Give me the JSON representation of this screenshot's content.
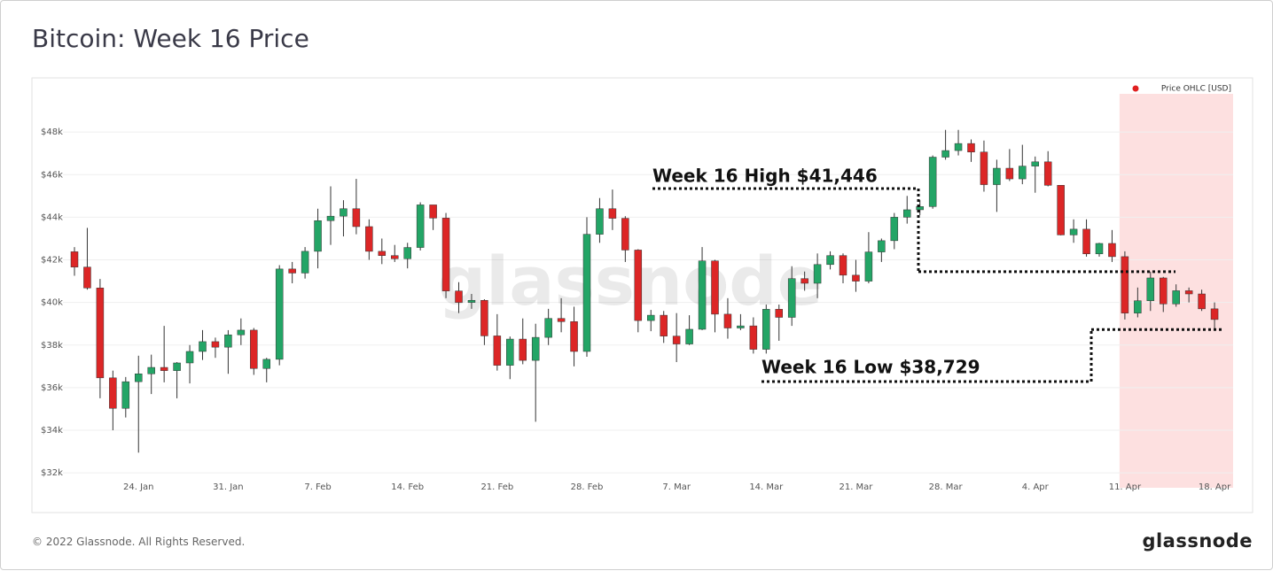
{
  "chart_data": {
    "type": "candlestick",
    "title": "Bitcoin: Week 16 Price",
    "watermark": "glassnode",
    "legend": {
      "name": "Price OHLC [USD]",
      "color": "#e02020",
      "position": "top-right"
    },
    "up_color": "#23a566",
    "down_color": "#dc2626",
    "highlight_color": "#fde0e0",
    "highlight_start": "11. Apr",
    "categories": [
      null,
      null,
      null,
      null,
      null,
      "24. Jan",
      null,
      null,
      null,
      null,
      null,
      null,
      "31. Jan",
      null,
      null,
      null,
      null,
      null,
      null,
      "7. Feb",
      null,
      null,
      null,
      null,
      null,
      null,
      "14. Feb",
      null,
      null,
      null,
      null,
      null,
      null,
      "21. Feb",
      null,
      null,
      null,
      null,
      null,
      null,
      "28. Feb",
      null,
      null,
      null,
      null,
      null,
      null,
      "7. Mar",
      null,
      null,
      null,
      null,
      null,
      null,
      "14. Mar",
      null,
      null,
      null,
      null,
      null,
      null,
      "21. Mar",
      null,
      null,
      null,
      null,
      null,
      null,
      "28. Mar",
      null,
      null,
      null,
      null,
      null,
      null,
      "4. Apr",
      null,
      null,
      null,
      null,
      null,
      null,
      "11. Apr",
      null,
      null,
      null,
      null,
      null,
      null,
      "18. Apr"
    ],
    "open": [
      42380,
      41660,
      40680,
      36460,
      35030,
      36280,
      36650,
      36950,
      36800,
      37160,
      37700,
      38160,
      37900,
      38480,
      38700,
      36900,
      37330,
      41570,
      41380,
      42400,
      43840,
      44050,
      44400,
      43560,
      42400,
      42200,
      42050,
      42580,
      44580,
      43960,
      40540,
      40000,
      40100,
      38430,
      37050,
      38280,
      37280,
      38360,
      39250,
      39100,
      37700,
      43200,
      44400,
      43950,
      42460,
      39150,
      39400,
      38420,
      38050,
      38740,
      41950,
      39450,
      38800,
      38900,
      37800,
      39680,
      39300,
      41120,
      40900,
      41780,
      42200,
      41280,
      41000,
      42370,
      42900,
      44000,
      44350,
      44500,
      46820,
      47130,
      47460,
      47060,
      45530,
      46300,
      45800,
      46400,
      46600,
      45500,
      43170,
      43440,
      42280,
      42770,
      42150,
      39500,
      40080,
      41150,
      39930,
      40550,
      40400,
      39700
    ],
    "high": [
      42600,
      43500,
      41100,
      36800,
      36500,
      37500,
      37550,
      38900,
      37200,
      38000,
      38700,
      38350,
      38700,
      39250,
      38800,
      37400,
      41750,
      41900,
      42600,
      44400,
      45450,
      44800,
      45800,
      43900,
      43000,
      42700,
      42800,
      44700,
      44580,
      44200,
      40950,
      40400,
      40150,
      39450,
      38400,
      39250,
      39000,
      39700,
      40200,
      39800,
      44000,
      44900,
      45300,
      44050,
      42500,
      39650,
      39600,
      39500,
      39400,
      42600,
      42000,
      40200,
      39450,
      39300,
      39900,
      39900,
      41700,
      41450,
      42300,
      42400,
      42300,
      42000,
      43300,
      43000,
      44200,
      45000,
      44800,
      46900,
      48100,
      48100,
      47650,
      47600,
      46700,
      47200,
      47400,
      46850,
      47100,
      45500,
      43900,
      43900,
      42800,
      43400,
      42400,
      40700,
      41446,
      41200,
      40850,
      40700,
      40600,
      40000
    ],
    "low": [
      41250,
      40600,
      35500,
      34000,
      34600,
      32950,
      35700,
      36250,
      35500,
      36200,
      37300,
      37400,
      36650,
      38000,
      36600,
      36250,
      37050,
      40900,
      41120,
      41600,
      42700,
      43100,
      43200,
      42000,
      41800,
      41900,
      41600,
      42440,
      43400,
      40200,
      39500,
      39700,
      38000,
      36800,
      36400,
      37100,
      34400,
      38000,
      38600,
      37000,
      37450,
      42800,
      43400,
      41900,
      38600,
      38650,
      38100,
      37200,
      38000,
      38700,
      38600,
      38300,
      38700,
      37600,
      37600,
      38200,
      38900,
      40550,
      40200,
      41550,
      40900,
      40500,
      40900,
      41900,
      42500,
      43700,
      44100,
      44400,
      46700,
      46900,
      46600,
      45200,
      44250,
      45700,
      45550,
      45150,
      45450,
      43150,
      42800,
      42150,
      42150,
      41900,
      39200,
      39300,
      39600,
      39550,
      39800,
      40000,
      39600,
      38729
    ],
    "close": [
      41660,
      40680,
      36460,
      35030,
      36280,
      36650,
      36950,
      36800,
      37160,
      37700,
      38160,
      37900,
      38480,
      38700,
      36900,
      37330,
      41570,
      41380,
      42400,
      43840,
      44050,
      44400,
      43560,
      42400,
      42200,
      42050,
      42580,
      44580,
      43960,
      40540,
      40000,
      40100,
      38430,
      37050,
      38280,
      37280,
      38360,
      39250,
      39100,
      37700,
      43200,
      44400,
      43950,
      42460,
      39150,
      39400,
      38420,
      38050,
      38740,
      41950,
      39450,
      38800,
      38900,
      37800,
      39680,
      39300,
      41120,
      40900,
      41780,
      42200,
      41280,
      41000,
      42370,
      42900,
      44000,
      44350,
      44500,
      46820,
      47130,
      47460,
      47060,
      45530,
      46300,
      45800,
      46400,
      46600,
      45500,
      43170,
      43440,
      42280,
      42770,
      42150,
      39500,
      40080,
      41150,
      39930,
      40550,
      40400,
      39700,
      39200
    ],
    "ylim": [
      31300,
      50000
    ],
    "yticks": [
      {
        "value": 32000,
        "label": "$32k"
      },
      {
        "value": 34000,
        "label": "$34k"
      },
      {
        "value": 36000,
        "label": "$36k"
      },
      {
        "value": 38000,
        "label": "$38k"
      },
      {
        "value": 40000,
        "label": "$40k"
      },
      {
        "value": 42000,
        "label": "$42k"
      },
      {
        "value": 44000,
        "label": "$44k"
      },
      {
        "value": 46000,
        "label": "$46k"
      },
      {
        "value": 48000,
        "label": "$48k"
      }
    ],
    "grid": true,
    "annotations": [
      {
        "text": "Week 16 High $41,446",
        "value": 41446
      },
      {
        "text": "Week 16 Low $38,729",
        "value": 38729
      }
    ]
  },
  "footer": {
    "copyright": "© 2022 Glassnode. All Rights Reserved.",
    "logo": "glassnode"
  }
}
